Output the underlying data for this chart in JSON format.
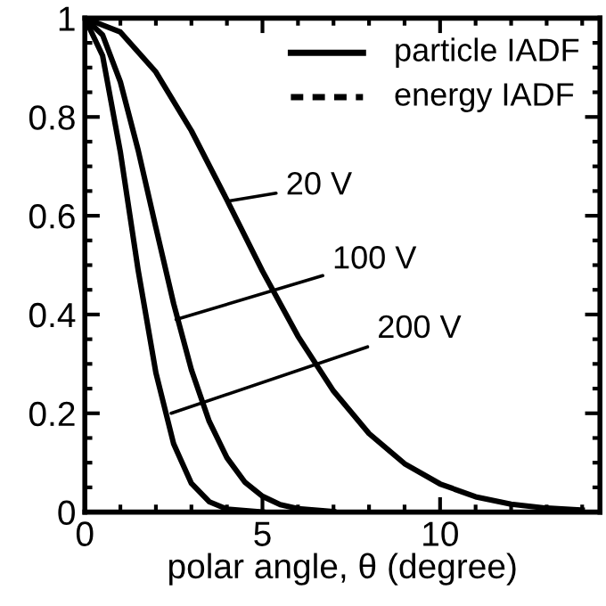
{
  "chart_data": {
    "type": "line",
    "xlabel": "polar angle, θ (degree)",
    "xlim": [
      0,
      14.5
    ],
    "xticks": [
      0,
      5,
      10
    ],
    "ylim": [
      0,
      1
    ],
    "yticks": [
      0,
      0.2,
      0.4,
      0.6,
      0.8,
      1
    ],
    "grid": false,
    "line_style": "solid",
    "marker": "none",
    "series": [
      {
        "color": "#000000",
        "x": [
          0,
          1,
          2,
          3,
          4,
          5,
          6,
          7,
          8,
          9,
          10,
          11,
          12,
          13,
          14
        ],
        "values": [
          1,
          0.972,
          0.891,
          0.772,
          0.632,
          0.488,
          0.356,
          0.245,
          0.159,
          0.098,
          0.057,
          0.031,
          0.016,
          0.008,
          0.004
        ]
      },
      {
        "color": "#000000",
        "x": [
          0,
          0.5,
          1,
          1.5,
          2,
          2.5,
          3,
          3.5,
          4,
          4.5,
          5,
          5.5,
          6,
          7
        ],
        "values": [
          1,
          0.966,
          0.871,
          0.733,
          0.576,
          0.422,
          0.288,
          0.184,
          0.11,
          0.061,
          0.032,
          0.015,
          0.007,
          0.001
        ]
      },
      {
        "color": "#000000",
        "x": [
          0,
          0.5,
          1,
          1.5,
          2,
          2.5,
          3,
          3.5,
          4,
          5
        ],
        "values": [
          1,
          0.924,
          0.729,
          0.49,
          0.282,
          0.138,
          0.058,
          0.021,
          0.006,
          0
        ]
      }
    ],
    "annotations": [
      "particle IADF",
      "energy IADF",
      {
        "text": "20 V",
        "x": 4.06,
        "y": 0.63
      },
      {
        "text": "100 V",
        "x": 2.57,
        "y": 0.39
      },
      {
        "text": "200 V",
        "x": 2.43,
        "y": 0.2
      }
    ]
  }
}
